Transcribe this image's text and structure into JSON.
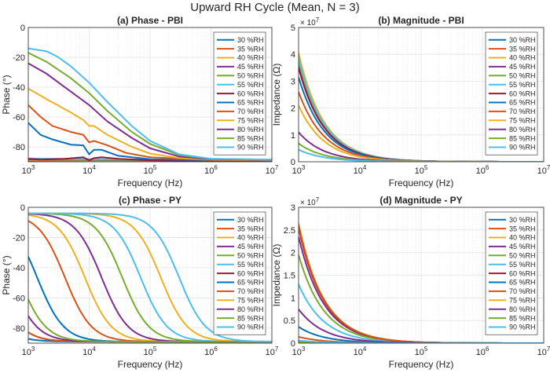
{
  "figure_title": "Upward RH Cycle (Mean, N = 3)",
  "colors": [
    "#0072BD",
    "#D95319",
    "#EDB120",
    "#7E2F8E",
    "#77AC30",
    "#4DBEEE",
    "#A2142F",
    "#0072BD",
    "#D95319",
    "#EDB120",
    "#7E2F8E",
    "#77AC30",
    "#4DBEEE"
  ],
  "chart_data": [
    {
      "type": "line",
      "id": "a",
      "title": "(a) Phase - PBI",
      "xlabel": "Frequency (Hz)",
      "ylabel": "Phase (°)",
      "xscale": "log",
      "xlim": [
        1000,
        10000000
      ],
      "ylim": [
        -90,
        0
      ],
      "yticks": [
        0,
        -20,
        -40,
        -60,
        -80
      ],
      "exponent": "",
      "xticklabels": [
        {
          "base": "10",
          "exp": "3"
        },
        {
          "base": "10",
          "exp": "4"
        },
        {
          "base": "10",
          "exp": "5"
        },
        {
          "base": "10",
          "exp": "6"
        },
        {
          "base": "10",
          "exp": "7"
        }
      ],
      "legend": "top-right",
      "series": [
        {
          "name": "30 %RH",
          "x": [
            1000,
            10000000
          ],
          "y": [
            -89.5,
            -89.8
          ]
        },
        {
          "name": "35 %RH",
          "x": [
            1000,
            10000000
          ],
          "y": [
            -89.3,
            -89.8
          ]
        },
        {
          "name": "40 %RH",
          "x": [
            1000,
            10000000
          ],
          "y": [
            -89,
            -89.7
          ]
        },
        {
          "name": "45 %RH",
          "x": [
            1000,
            10000000
          ],
          "y": [
            -88.6,
            -89.6
          ]
        },
        {
          "name": "50 %RH",
          "x": [
            1000,
            10000000
          ],
          "y": [
            -88.3,
            -89.5
          ]
        },
        {
          "name": "55 %RH",
          "x": [
            1000,
            10000000
          ],
          "y": [
            -87.8,
            -89.4
          ]
        },
        {
          "name": "60 %RH",
          "x": [
            1000,
            1600,
            4000,
            8000,
            10000,
            12000,
            16000,
            30000,
            100000,
            1000000,
            10000000
          ],
          "y": [
            -88,
            -88.5,
            -88,
            -87,
            -89,
            -87.5,
            -87,
            -88,
            -89,
            -89.5,
            -89.5
          ]
        },
        {
          "name": "65 %RH",
          "x": [
            1000,
            1600,
            2500,
            5000,
            8000,
            10000,
            12000,
            16000,
            30000,
            100000,
            1000000,
            10000000
          ],
          "y": [
            -64,
            -72,
            -75,
            -78.5,
            -79,
            -85,
            -82,
            -82,
            -86,
            -88.3,
            -89,
            -89.2
          ]
        },
        {
          "name": "70 %RH",
          "x": [
            1000,
            1600,
            2500,
            5000,
            8000,
            10000,
            12000,
            20000,
            40000,
            100000,
            1000000,
            10000000
          ],
          "y": [
            -52,
            -60,
            -66,
            -70,
            -72,
            -77,
            -76,
            -79,
            -84,
            -87,
            -88.8,
            -89.1
          ]
        },
        {
          "name": "75 %RH",
          "x": [
            1000,
            2000,
            5000,
            8000,
            10000,
            12000,
            20000,
            50000,
            100000,
            300000,
            1000000,
            10000000
          ],
          "y": [
            -41,
            -48,
            -57,
            -62,
            -66,
            -66,
            -72,
            -80,
            -84.5,
            -87.5,
            -88.5,
            -89
          ]
        },
        {
          "name": "80 %RH",
          "x": [
            1000,
            2000,
            5000,
            10000,
            20000,
            50000,
            100000,
            300000,
            1000000,
            10000000
          ],
          "y": [
            -24,
            -31,
            -43,
            -52,
            -63,
            -74,
            -81,
            -86.5,
            -88.3,
            -88.8
          ]
        },
        {
          "name": "85 %RH",
          "x": [
            1000,
            2000,
            5000,
            10000,
            20000,
            50000,
            100000,
            300000,
            1000000,
            10000000
          ],
          "y": [
            -17,
            -23,
            -34,
            -44,
            -56,
            -70,
            -78,
            -85.5,
            -88,
            -88.6
          ]
        },
        {
          "name": "90 %RH",
          "x": [
            1000,
            2000,
            3000,
            5000,
            10000,
            20000,
            50000,
            100000,
            300000,
            1000000,
            10000000
          ],
          "y": [
            -14,
            -16,
            -19.5,
            -26,
            -37,
            -50,
            -66,
            -76,
            -85,
            -88,
            -88.5
          ]
        }
      ]
    },
    {
      "type": "line",
      "id": "b",
      "title": "(b) Magnitude - PBI",
      "xlabel": "Frequency (Hz)",
      "ylabel": "Impedance (Ω)",
      "xscale": "log",
      "xlim": [
        1000,
        10000000
      ],
      "ylim": [
        0,
        50000000
      ],
      "yticks": [
        0,
        10000000,
        20000000,
        30000000,
        40000000,
        50000000
      ],
      "yticklabels": [
        "0",
        "1",
        "2",
        "3",
        "4",
        "5"
      ],
      "exponent": "× 10^7",
      "xticklabels": [
        {
          "base": "10",
          "exp": "3"
        },
        {
          "base": "10",
          "exp": "4"
        },
        {
          "base": "10",
          "exp": "5"
        },
        {
          "base": "10",
          "exp": "6"
        },
        {
          "base": "10",
          "exp": "7"
        }
      ],
      "legend": "top-right",
      "decay_model": "power-law, amplitude A at 10^3 Hz, exponent ~1",
      "series": [
        {
          "name": "30 %RH",
          "A": 40000000
        },
        {
          "name": "35 %RH",
          "A": 39000000
        },
        {
          "name": "40 %RH",
          "A": 40500000
        },
        {
          "name": "45 %RH",
          "A": 36000000
        },
        {
          "name": "50 %RH",
          "A": 37500000
        },
        {
          "name": "55 %RH",
          "A": 38500000
        },
        {
          "name": "60 %RH",
          "A": 35000000
        },
        {
          "name": "65 %RH",
          "A": 31500000
        },
        {
          "name": "70 %RH",
          "A": 26000000
        },
        {
          "name": "75 %RH",
          "A": 21000000
        },
        {
          "name": "80 %RH",
          "A": 11000000
        },
        {
          "name": "85 %RH",
          "A": 6800000
        },
        {
          "name": "90 %RH",
          "A": 4500000
        }
      ]
    },
    {
      "type": "line",
      "id": "c",
      "title": "(c) Phase - PY",
      "xlabel": "Frequency (Hz)",
      "ylabel": "Phase (°)",
      "xscale": "log",
      "xlim": [
        1000,
        10000000
      ],
      "ylim": [
        -90,
        0
      ],
      "yticks": [
        0,
        -20,
        -40,
        -60,
        -80
      ],
      "exponent": "",
      "xticklabels": [
        {
          "base": "10",
          "exp": "3"
        },
        {
          "base": "10",
          "exp": "4"
        },
        {
          "base": "10",
          "exp": "5"
        },
        {
          "base": "10",
          "exp": "6"
        },
        {
          "base": "10",
          "exp": "7"
        }
      ],
      "legend": "top-right",
      "transition_model": "sigmoid from ~-4° to ~-89° at corner frequency fc (Hz)",
      "series": [
        {
          "name": "30 %RH",
          "fc": 1400
        },
        {
          "name": "35 %RH",
          "fc": 4000
        },
        {
          "name": "40 %RH",
          "fc": 8500
        },
        {
          "name": "45 %RH",
          "fc": 16000
        },
        {
          "name": "50 %RH",
          "fc": 35000
        },
        {
          "name": "55 %RH",
          "fc": 70000
        },
        {
          "name": "60 %RH",
          "fc": 280
        },
        {
          "name": "65 %RH",
          "fc": 150
        },
        {
          "name": "70 %RH",
          "fc": 280
        },
        {
          "name": "75 %RH",
          "fc": 150000
        },
        {
          "name": "80 %RH",
          "fc": 500
        },
        {
          "name": "85 %RH",
          "fc": 700
        },
        {
          "name": "90 %RH",
          "fc": 300000
        }
      ]
    },
    {
      "type": "line",
      "id": "d",
      "title": "(d) Magnitude - PY",
      "xlabel": "Frequency (Hz)",
      "ylabel": "Impedance (Ω)",
      "xscale": "log",
      "xlim": [
        1000,
        10000000
      ],
      "ylim": [
        0,
        30000000
      ],
      "yticks": [
        0,
        5000000,
        10000000,
        15000000,
        20000000,
        25000000,
        30000000
      ],
      "yticklabels": [
        "0",
        "0.5",
        "1",
        "1.5",
        "2",
        "2.5",
        "3"
      ],
      "exponent": "× 10^7",
      "xticklabels": [
        {
          "base": "10",
          "exp": "3"
        },
        {
          "base": "10",
          "exp": "4"
        },
        {
          "base": "10",
          "exp": "5"
        },
        {
          "base": "10",
          "exp": "6"
        },
        {
          "base": "10",
          "exp": "7"
        }
      ],
      "legend": "top-right",
      "decay_model": "power-law, amplitude A at 10^3 Hz, exponent ~1",
      "series": [
        {
          "name": "30 %RH",
          "A": 3600000
        },
        {
          "name": "35 %RH",
          "A": 1400000
        },
        {
          "name": "40 %RH",
          "A": 26500000
        },
        {
          "name": "45 %RH",
          "A": 23500000
        },
        {
          "name": "50 %RH",
          "A": 19500000
        },
        {
          "name": "55 %RH",
          "A": 13000000
        },
        {
          "name": "60 %RH",
          "A": 25500000
        },
        {
          "name": "65 %RH",
          "A": 500000
        },
        {
          "name": "70 %RH",
          "A": 26000000
        },
        {
          "name": "75 %RH",
          "A": 200000
        },
        {
          "name": "80 %RH",
          "A": 7500000
        },
        {
          "name": "85 %RH",
          "A": 300000
        },
        {
          "name": "90 %RH",
          "A": 600000
        }
      ]
    }
  ]
}
